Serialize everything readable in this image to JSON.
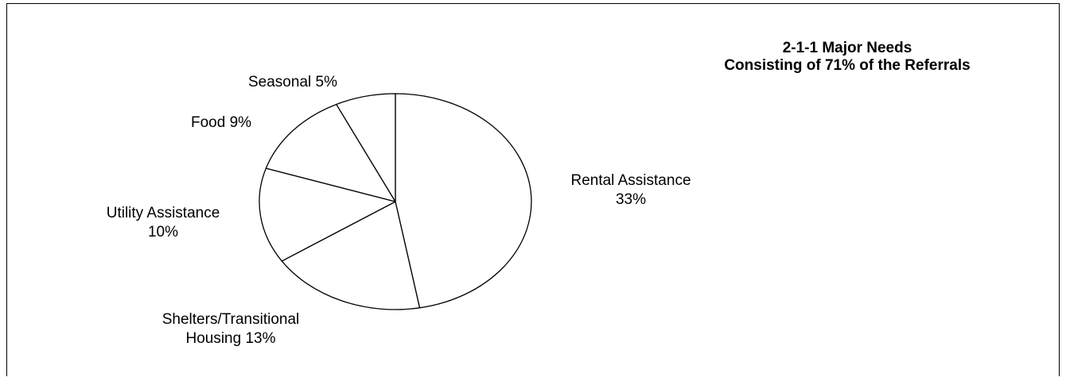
{
  "chart_data": {
    "type": "pie",
    "title_lines": [
      "2-1-1 Major Needs",
      "Consisting of 71% of the Referrals"
    ],
    "slices": [
      {
        "label_lines": [
          "Rental Assistance",
          "33%"
        ],
        "value": 33
      },
      {
        "label_lines": [
          "Shelters/Transitional",
          "Housing 13%"
        ],
        "value": 13
      },
      {
        "label_lines": [
          "Utility Assistance",
          "10%"
        ],
        "value": 10
      },
      {
        "label_lines": [
          "Food 9%"
        ],
        "value": 9
      },
      {
        "label_lines": [
          "Seasonal 5%"
        ],
        "value": 5
      }
    ],
    "colors": {
      "fill": "#ffffff",
      "stroke": "#000000"
    }
  }
}
